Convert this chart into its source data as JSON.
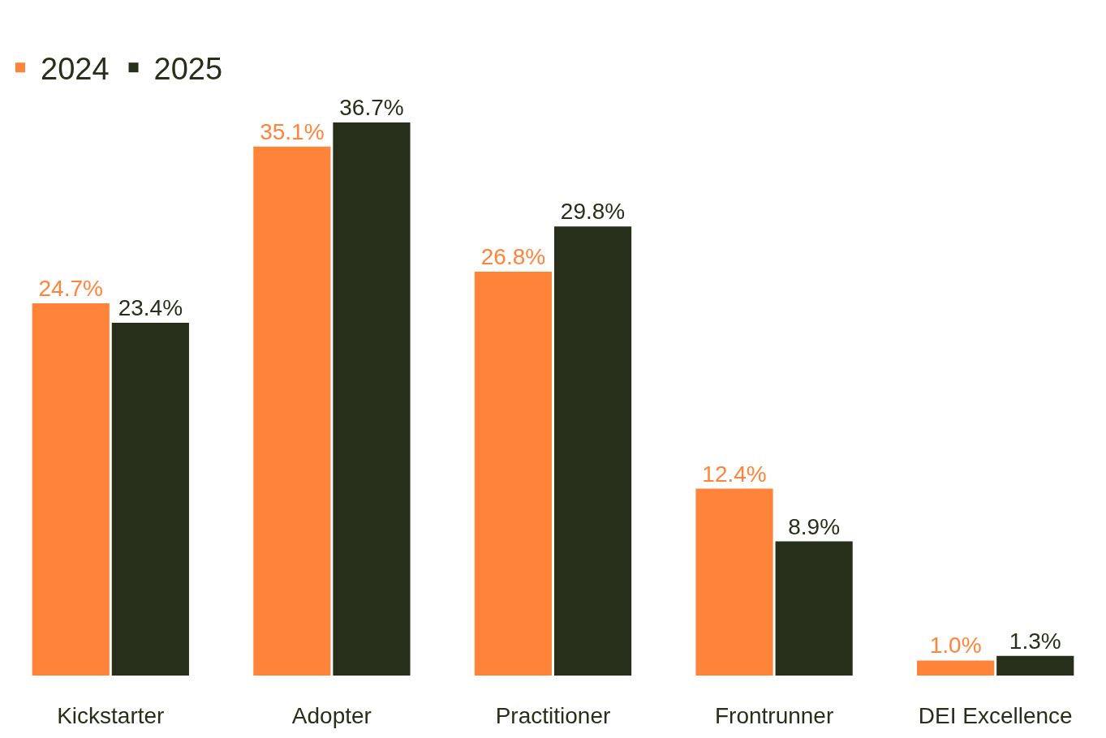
{
  "chart_data": {
    "type": "bar",
    "categories": [
      "Kickstarter",
      "Adopter",
      "Practitioner",
      "Frontrunner",
      "DEI Excellence"
    ],
    "legend": "top left",
    "grid": false,
    "series": [
      {
        "name": "2024",
        "color": "#ff8439",
        "values": [
          24.7,
          35.1,
          26.8,
          12.4,
          1.0
        ],
        "value_labels": [
          "24.7%",
          "35.1%",
          "26.8%",
          "12.4%",
          "1.0%"
        ]
      },
      {
        "name": "2025",
        "color": "#272e19",
        "values": [
          23.4,
          36.7,
          29.8,
          8.9,
          1.3
        ],
        "value_labels": [
          "23.4%",
          "36.7%",
          "29.8%",
          "8.9%",
          "1.3%"
        ]
      }
    ]
  }
}
